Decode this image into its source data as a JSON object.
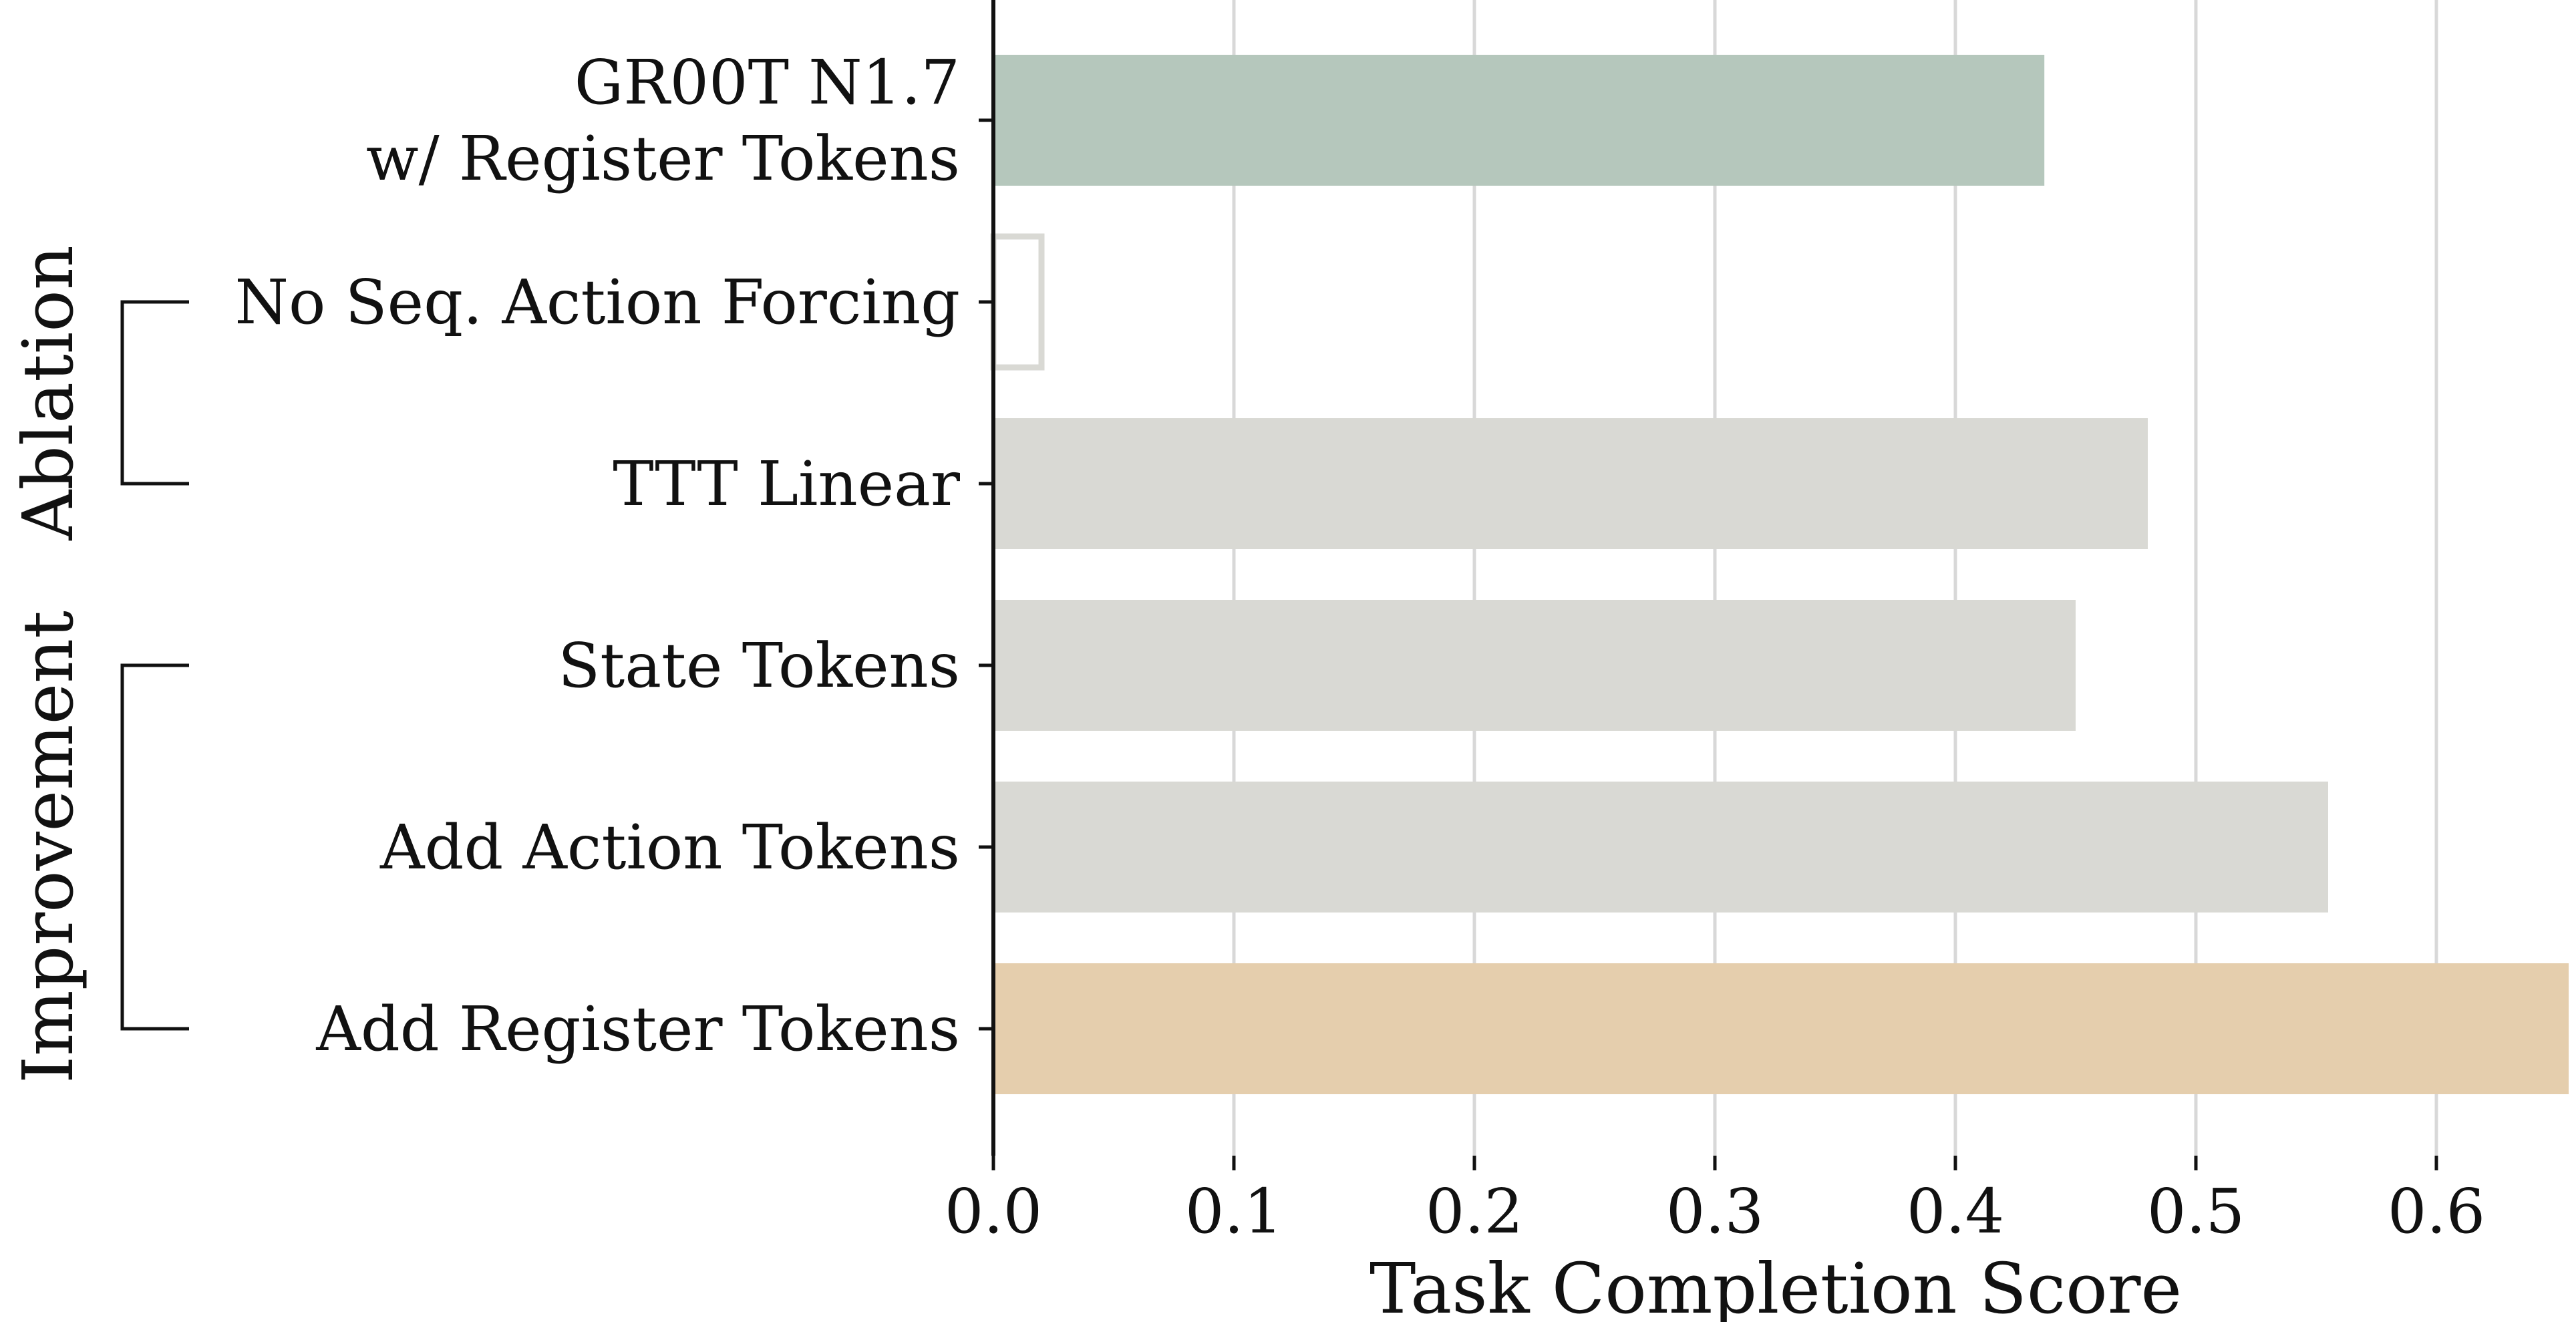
{
  "chart_data": {
    "type": "bar",
    "orientation": "horizontal",
    "categories": [
      "GR00T N1.7\nw/ Register Tokens",
      "No Seq. Action Forcing",
      "TTT Linear",
      "State Tokens",
      "Add Action Tokens",
      "Add Register Tokens"
    ],
    "values": [
      0.437,
      0.02,
      0.48,
      0.45,
      0.555,
      0.655
    ],
    "bar_styles": [
      "filled",
      "outline",
      "filled",
      "filled",
      "filled",
      "filled"
    ],
    "bar_colors": [
      "#b5c7bc",
      "#d9d9d4",
      "#d9d9d4",
      "#d9d9d4",
      "#d9d9d4",
      "#e5cead"
    ],
    "xlabel": "Task Completion Score",
    "ylabel": "",
    "xlim": [
      0,
      0.655
    ],
    "xticks": [
      0.0,
      0.1,
      0.2,
      0.3,
      0.4,
      0.5,
      0.6
    ],
    "xtick_labels": [
      "0.0",
      "0.1",
      "0.2",
      "0.3",
      "0.4",
      "0.5",
      "0.6"
    ],
    "grid": "vertical",
    "grid_color": "#d8d8d8",
    "groups": [
      {
        "label": "Ablation",
        "from_index": 1,
        "to_index": 2
      },
      {
        "label": "Improvement",
        "from_index": 3,
        "to_index": 5
      }
    ]
  }
}
